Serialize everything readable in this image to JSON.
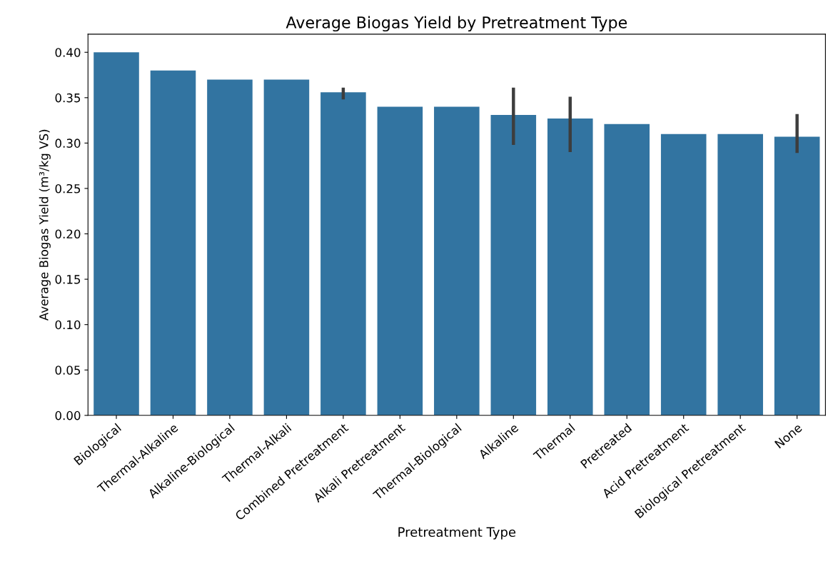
{
  "chart_data": {
    "type": "bar",
    "title": "Average Biogas Yield by Pretreatment Type",
    "xlabel": "Pretreatment Type",
    "ylabel": "Average Biogas Yield (m³/kg VS)",
    "categories": [
      "Biological",
      "Thermal-Alkaline",
      "Alkaline-Biological",
      "Thermal-Alkali",
      "Combined Pretreatment",
      "Alkali Pretreatment",
      "Thermal-Biological",
      "Alkaline",
      "Thermal",
      "Pretreated",
      "Acid Pretreatment",
      "Biological Pretreatment",
      "None"
    ],
    "values": [
      0.4,
      0.38,
      0.37,
      0.37,
      0.356,
      0.34,
      0.34,
      0.331,
      0.327,
      0.321,
      0.31,
      0.31,
      0.307
    ],
    "errors": [
      null,
      null,
      null,
      null,
      [
        0.348,
        0.361
      ],
      null,
      null,
      [
        0.298,
        0.361
      ],
      [
        0.29,
        0.351
      ],
      null,
      null,
      null,
      [
        0.289,
        0.332
      ]
    ],
    "color": "#3274a1",
    "ylim": [
      0,
      0.42
    ],
    "yticks": [
      {
        "value": 0,
        "label": "0.00"
      },
      {
        "value": 0.05,
        "label": "0.05"
      },
      {
        "value": 0.1,
        "label": "0.10"
      },
      {
        "value": 0.15,
        "label": "0.15"
      },
      {
        "value": 0.2,
        "label": "0.20"
      },
      {
        "value": 0.25,
        "label": "0.25"
      },
      {
        "value": 0.3,
        "label": "0.30"
      },
      {
        "value": 0.35,
        "label": "0.35"
      },
      {
        "value": 0.4,
        "label": "0.40"
      }
    ],
    "grid": false,
    "legend": false
  }
}
